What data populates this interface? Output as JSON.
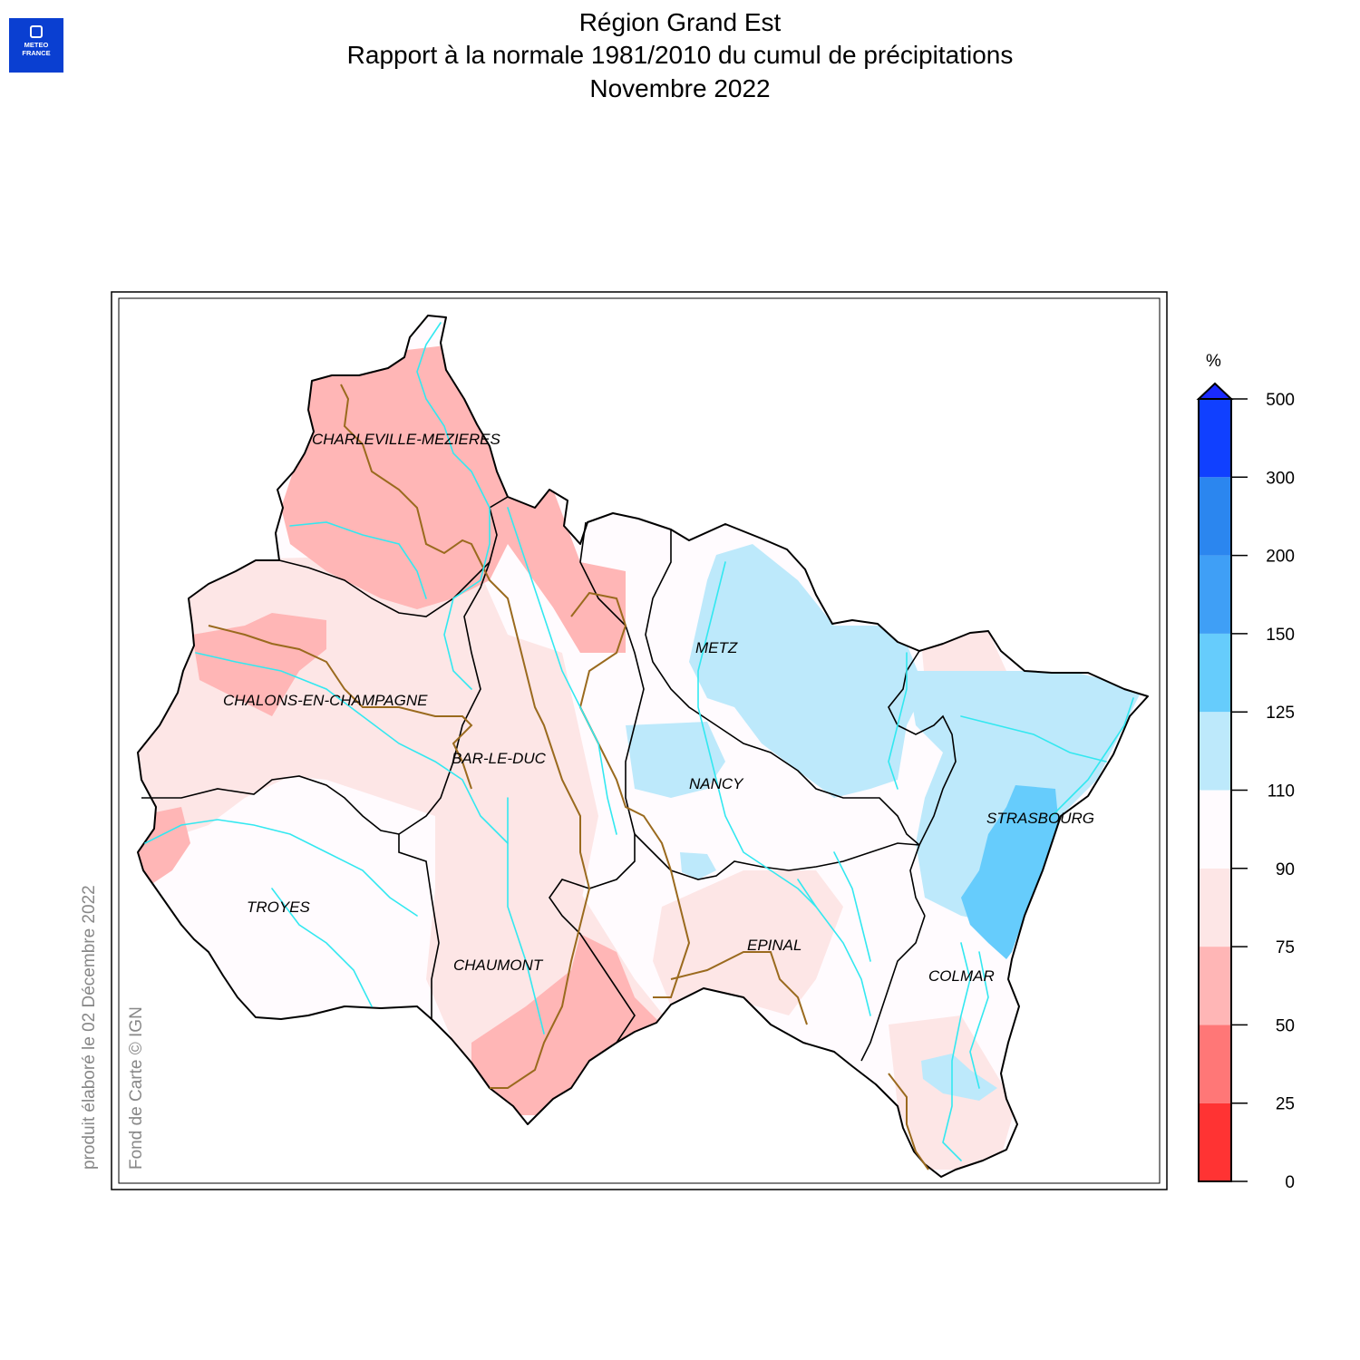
{
  "logo": {
    "line1": "METEO",
    "line2": "FRANCE",
    "icon": "meteo-france-logo-icon",
    "color": "#0a3fd1"
  },
  "title": {
    "line1": "Région Grand Est",
    "line2": "Rapport à la normale 1981/2010 du cumul de précipitations",
    "line3": "Novembre 2022"
  },
  "cities": [
    {
      "name": "CHARLEVILLE-MEZIERES"
    },
    {
      "name": "METZ"
    },
    {
      "name": "CHALONS-EN-CHAMPAGNE"
    },
    {
      "name": "BAR-LE-DUC"
    },
    {
      "name": "NANCY"
    },
    {
      "name": "STRASBOURG"
    },
    {
      "name": "TROYES"
    },
    {
      "name": "CHAUMONT"
    },
    {
      "name": "EPINAL"
    },
    {
      "name": "COLMAR"
    }
  ],
  "legend": {
    "unit": "%",
    "ticks": [
      "0",
      "25",
      "50",
      "75",
      "90",
      "110",
      "125",
      "150",
      "200",
      "300",
      "500"
    ],
    "classes": [
      {
        "from": 0,
        "to": 25,
        "color": "#ff3333"
      },
      {
        "from": 25,
        "to": 50,
        "color": "#ff7777"
      },
      {
        "from": 50,
        "to": 75,
        "color": "#ffb6b6"
      },
      {
        "from": 75,
        "to": 90,
        "color": "#fde6e6"
      },
      {
        "from": 90,
        "to": 110,
        "color": "#fffbfe"
      },
      {
        "from": 110,
        "to": 125,
        "color": "#bde9fb"
      },
      {
        "from": 125,
        "to": 150,
        "color": "#66ccfc"
      },
      {
        "from": 150,
        "to": 200,
        "color": "#3f9ff6"
      },
      {
        "from": 200,
        "to": 300,
        "color": "#2b86ef"
      },
      {
        "from": 300,
        "to": 500,
        "color": "#1040ff"
      }
    ],
    "overflow_arrow_color": "#1a2aff"
  },
  "credits": {
    "produced": "produit élaboré le 02 Décembre 2022",
    "basemap": "Fond de Carte © IGN"
  },
  "colors": {
    "river": "#33e8f0",
    "boundary": "#000000",
    "department_border": "#9a6a1e"
  }
}
